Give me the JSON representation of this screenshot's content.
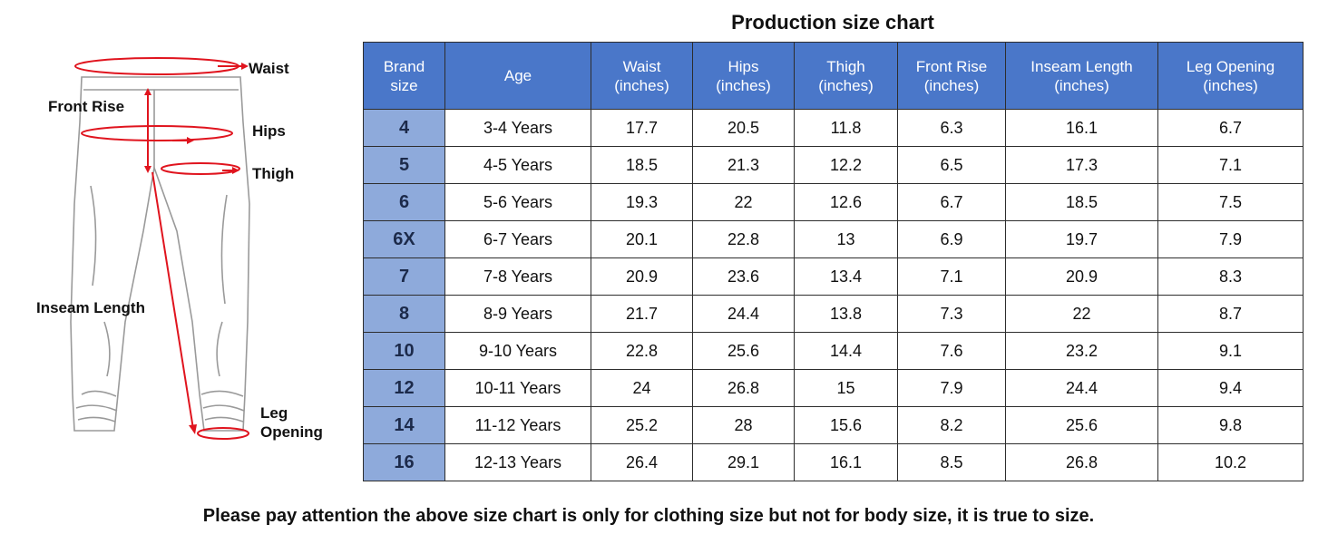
{
  "title": "Production size chart",
  "table": {
    "headers": [
      "Brand\nsize",
      "Age",
      "Waist\n(inches)",
      "Hips\n(inches)",
      "Thigh\n(inches)",
      "Front Rise\n(inches)",
      "Inseam Length\n(inches)",
      "Leg Opening\n(inches)"
    ],
    "rows": [
      [
        "4",
        "3-4 Years",
        "17.7",
        "20.5",
        "11.8",
        "6.3",
        "16.1",
        "6.7"
      ],
      [
        "5",
        "4-5 Years",
        "18.5",
        "21.3",
        "12.2",
        "6.5",
        "17.3",
        "7.1"
      ],
      [
        "6",
        "5-6 Years",
        "19.3",
        "22",
        "12.6",
        "6.7",
        "18.5",
        "7.5"
      ],
      [
        "6X",
        "6-7 Years",
        "20.1",
        "22.8",
        "13",
        "6.9",
        "19.7",
        "7.9"
      ],
      [
        "7",
        "7-8 Years",
        "20.9",
        "23.6",
        "13.4",
        "7.1",
        "20.9",
        "8.3"
      ],
      [
        "8",
        "8-9 Years",
        "21.7",
        "24.4",
        "13.8",
        "7.3",
        "22",
        "8.7"
      ],
      [
        "10",
        "9-10 Years",
        "22.8",
        "25.6",
        "14.4",
        "7.6",
        "23.2",
        "9.1"
      ],
      [
        "12",
        "10-11 Years",
        "24",
        "26.8",
        "15",
        "7.9",
        "24.4",
        "9.4"
      ],
      [
        "14",
        "11-12 Years",
        "25.2",
        "28",
        "15.6",
        "8.2",
        "25.6",
        "9.8"
      ],
      [
        "16",
        "12-13 Years",
        "26.4",
        "29.1",
        "16.1",
        "8.5",
        "26.8",
        "10.2"
      ]
    ]
  },
  "diagram": {
    "labels": {
      "waist": "Waist",
      "front_rise": "Front Rise",
      "hips": "Hips",
      "thigh": "Thigh",
      "inseam": "Inseam Length",
      "leg_opening": "Leg\nOpening"
    },
    "colors": {
      "measure": "#e0141e",
      "outline": "#9a9a9a"
    }
  },
  "footnote": "Please pay attention the above size chart is only for clothing size but not for body size, it is true to size.",
  "colors": {
    "header_bg": "#4a77c9",
    "size_col_bg": "#8eaadb",
    "border": "#2d2d2d"
  }
}
